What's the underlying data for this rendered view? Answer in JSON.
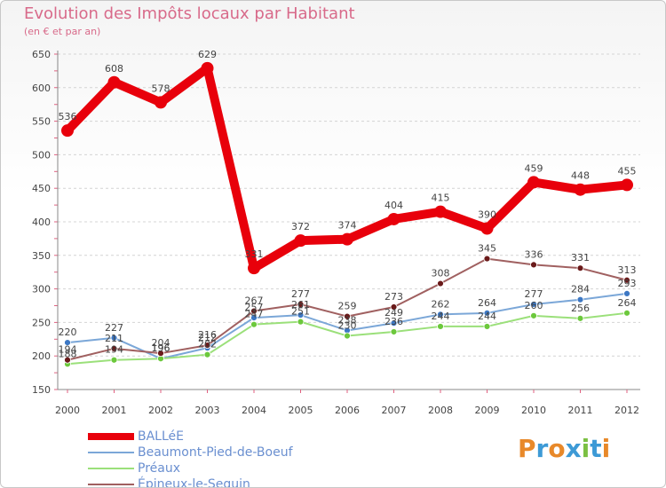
{
  "header": {
    "title": "Evolution des Impôts locaux par Habitant",
    "subtitle": "(en € et par an)"
  },
  "brand": {
    "text": "Proxiti",
    "colors": [
      "#e8892a",
      "#3d9ad6",
      "#e8892a",
      "#3d9ad6",
      "#7bc043",
      "#3d9ad6",
      "#e8892a"
    ]
  },
  "chart_data": {
    "type": "line",
    "title": "Evolution des Impôts locaux par Habitant",
    "subtitle": "(en € et par an)",
    "xlabel": "",
    "ylabel": "",
    "ylim": [
      150,
      650
    ],
    "yticks": [
      150,
      200,
      250,
      300,
      350,
      400,
      450,
      500,
      550,
      600,
      650
    ],
    "categories": [
      "2000",
      "2001",
      "2002",
      "2003",
      "2004",
      "2005",
      "2006",
      "2007",
      "2008",
      "2009",
      "2010",
      "2011",
      "2012"
    ],
    "grid": "horizontal dashed",
    "legend": "bottom-left",
    "series": [
      {
        "name": "BALLéE",
        "color": "#e8000b",
        "marker_color": "#e8000b",
        "values": [
          536,
          608,
          578,
          629,
          331,
          372,
          374,
          404,
          415,
          390,
          459,
          448,
          455
        ],
        "labels": [
          "536",
          "608",
          "578",
          "629",
          "331",
          "372",
          "374",
          "404",
          "415",
          "390",
          "459",
          "448",
          "455"
        ]
      },
      {
        "name": "Beaumont-Pied-de-Boeuf",
        "color": "#7ba7d8",
        "marker_color": "#3d78c4",
        "values": [
          220,
          227,
          196,
          212,
          257,
          261,
          238,
          249,
          262,
          264,
          277,
          284,
          293
        ],
        "labels": [
          "220",
          "227",
          "196",
          "212",
          "257",
          "261",
          "238",
          "249",
          "262",
          "264",
          "277",
          "284",
          "293"
        ]
      },
      {
        "name": "Préaux",
        "color": "#9be07a",
        "marker_color": "#6cc83c",
        "values": [
          188,
          194,
          196,
          202,
          247,
          251,
          230,
          236,
          244,
          244,
          260,
          256,
          264
        ],
        "labels": [
          "188",
          "194",
          "196",
          "202",
          "247",
          "251",
          "230",
          "236",
          "244",
          "244",
          "260",
          "256",
          "264"
        ]
      },
      {
        "name": "Épineux-le-Seguin",
        "color": "#a06060",
        "marker_color": "#6a1a1a",
        "values": [
          194,
          211,
          204,
          216,
          267,
          277,
          259,
          273,
          308,
          345,
          336,
          331,
          313
        ],
        "labels": [
          "194",
          "211",
          "204",
          "216",
          "267",
          "277",
          "259",
          "273",
          "308",
          "345",
          "336",
          "331",
          "313"
        ]
      }
    ]
  }
}
